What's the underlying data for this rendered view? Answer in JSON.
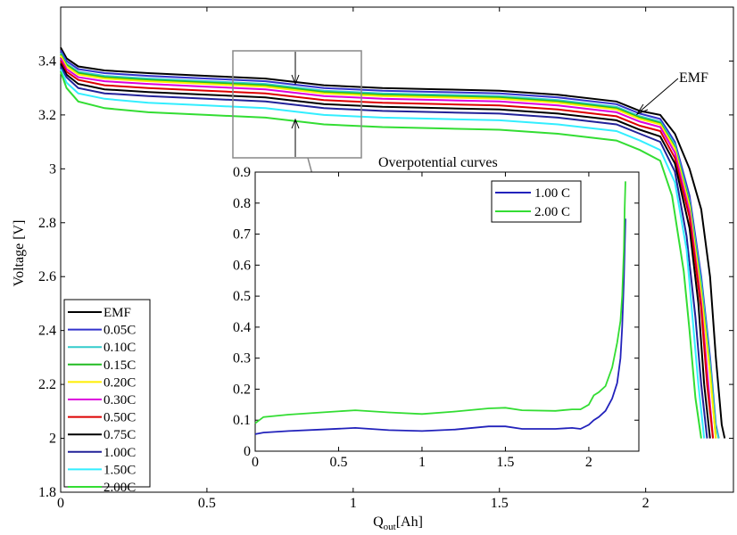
{
  "chart_data": [
    {
      "type": "line",
      "ylabel": "Voltage [V]",
      "xlabel_main": "Q",
      "xlabel_sub": "out",
      "xlabel_unit": "[Ah]",
      "xlim": [
        0,
        2.3
      ],
      "ylim": [
        1.8,
        3.6
      ],
      "xticks": [
        0,
        0.5,
        1,
        1.5,
        2
      ],
      "xtick_labels": [
        "0",
        "0.5",
        "1",
        "1.5",
        "2"
      ],
      "yticks": [
        1.8,
        2,
        2.2,
        2.4,
        2.6,
        2.8,
        3,
        3.2,
        3.4
      ],
      "ytick_labels": [
        "1.8",
        "2",
        "2.2",
        "2.4",
        "2.6",
        "2.8",
        "3",
        "3.2",
        "3.4"
      ],
      "annotation": "EMF",
      "legend_position": "bottom-left",
      "series": [
        {
          "name": "EMF",
          "color": "#000000",
          "qmax": 2.27,
          "x": [
            0,
            0.02,
            0.06,
            0.15,
            0.3,
            0.5,
            0.7,
            0.9,
            1.1,
            1.3,
            1.5,
            1.7,
            1.9,
            1.98,
            2.05,
            2.1,
            2.15,
            2.19,
            2.22,
            2.24,
            2.26,
            2.27
          ],
          "y": [
            3.45,
            3.41,
            3.38,
            3.365,
            3.355,
            3.345,
            3.335,
            3.31,
            3.3,
            3.295,
            3.29,
            3.275,
            3.25,
            3.215,
            3.2,
            3.13,
            3.0,
            2.85,
            2.6,
            2.3,
            2.05,
            2.0
          ]
        },
        {
          "name": "0.05C",
          "color": "#3333cc",
          "qmax": 2.25,
          "x": [
            0,
            0.02,
            0.06,
            0.15,
            0.3,
            0.5,
            0.7,
            0.9,
            1.1,
            1.3,
            1.5,
            1.7,
            1.9,
            1.98,
            2.05,
            2.1,
            2.15,
            2.19,
            2.22,
            2.24,
            2.25
          ],
          "y": [
            3.44,
            3.4,
            3.37,
            3.355,
            3.345,
            3.335,
            3.325,
            3.3,
            3.29,
            3.285,
            3.28,
            3.265,
            3.24,
            3.205,
            3.185,
            3.1,
            2.9,
            2.6,
            2.3,
            2.05,
            2.0
          ]
        },
        {
          "name": "0.10C",
          "color": "#33cccc",
          "qmax": 2.25,
          "x": [
            0,
            0.02,
            0.06,
            0.15,
            0.3,
            0.5,
            0.7,
            0.9,
            1.1,
            1.3,
            1.5,
            1.7,
            1.9,
            1.98,
            2.05,
            2.1,
            2.15,
            2.19,
            2.22,
            2.24,
            2.25
          ],
          "y": [
            3.43,
            3.39,
            3.36,
            3.345,
            3.335,
            3.325,
            3.315,
            3.29,
            3.28,
            3.275,
            3.27,
            3.255,
            3.23,
            3.195,
            3.175,
            3.09,
            2.88,
            2.58,
            2.28,
            2.04,
            2.0
          ]
        },
        {
          "name": "0.15C",
          "color": "#22bb22",
          "qmax": 2.24,
          "x": [
            0,
            0.02,
            0.06,
            0.15,
            0.3,
            0.5,
            0.7,
            0.9,
            1.1,
            1.3,
            1.5,
            1.7,
            1.9,
            1.98,
            2.05,
            2.1,
            2.15,
            2.19,
            2.22,
            2.24
          ],
          "y": [
            3.425,
            3.385,
            3.355,
            3.34,
            3.33,
            3.32,
            3.31,
            3.285,
            3.275,
            3.27,
            3.265,
            3.25,
            3.225,
            3.19,
            3.17,
            3.08,
            2.87,
            2.55,
            2.25,
            2.0
          ]
        },
        {
          "name": "0.20C",
          "color": "#ffee00",
          "qmax": 2.24,
          "x": [
            0,
            0.02,
            0.06,
            0.15,
            0.3,
            0.5,
            0.7,
            0.9,
            1.1,
            1.3,
            1.5,
            1.7,
            1.9,
            1.98,
            2.05,
            2.1,
            2.15,
            2.19,
            2.22,
            2.24
          ],
          "y": [
            3.42,
            3.38,
            3.35,
            3.335,
            3.325,
            3.315,
            3.305,
            3.28,
            3.27,
            3.265,
            3.26,
            3.245,
            3.22,
            3.185,
            3.165,
            3.075,
            2.86,
            2.54,
            2.24,
            2.0
          ]
        },
        {
          "name": "0.30C",
          "color": "#dd00dd",
          "qmax": 2.23,
          "x": [
            0,
            0.02,
            0.06,
            0.15,
            0.3,
            0.5,
            0.7,
            0.9,
            1.1,
            1.3,
            1.5,
            1.7,
            1.9,
            1.98,
            2.05,
            2.1,
            2.15,
            2.19,
            2.21,
            2.23
          ],
          "y": [
            3.41,
            3.37,
            3.34,
            3.325,
            3.315,
            3.305,
            3.295,
            3.27,
            3.26,
            3.255,
            3.25,
            3.235,
            3.21,
            3.175,
            3.155,
            3.06,
            2.84,
            2.5,
            2.25,
            2.0
          ]
        },
        {
          "name": "0.50C",
          "color": "#dd0000",
          "qmax": 2.23,
          "x": [
            0,
            0.02,
            0.06,
            0.15,
            0.3,
            0.5,
            0.7,
            0.9,
            1.1,
            1.3,
            1.5,
            1.7,
            1.9,
            1.98,
            2.05,
            2.1,
            2.15,
            2.19,
            2.21,
            2.23
          ],
          "y": [
            3.4,
            3.36,
            3.33,
            3.31,
            3.3,
            3.29,
            3.28,
            3.255,
            3.245,
            3.24,
            3.235,
            3.22,
            3.195,
            3.16,
            3.14,
            3.04,
            2.82,
            2.48,
            2.2,
            2.0
          ]
        },
        {
          "name": "0.75C",
          "color": "#000000",
          "qmax": 2.22,
          "x": [
            0,
            0.02,
            0.06,
            0.15,
            0.3,
            0.5,
            0.7,
            0.9,
            1.1,
            1.3,
            1.5,
            1.7,
            1.9,
            1.98,
            2.05,
            2.1,
            2.15,
            2.18,
            2.2,
            2.22
          ],
          "y": [
            3.39,
            3.35,
            3.315,
            3.295,
            3.285,
            3.275,
            3.265,
            3.24,
            3.23,
            3.225,
            3.22,
            3.205,
            3.18,
            3.145,
            3.12,
            3.02,
            2.78,
            2.5,
            2.2,
            2.0
          ]
        },
        {
          "name": "1.00C",
          "color": "#222299",
          "qmax": 2.21,
          "x": [
            0,
            0.02,
            0.06,
            0.15,
            0.3,
            0.5,
            0.7,
            0.9,
            1.1,
            1.3,
            1.5,
            1.7,
            1.9,
            1.98,
            2.05,
            2.1,
            2.14,
            2.17,
            2.19,
            2.21
          ],
          "y": [
            3.38,
            3.34,
            3.3,
            3.28,
            3.27,
            3.26,
            3.25,
            3.225,
            3.215,
            3.21,
            3.205,
            3.19,
            3.165,
            3.13,
            3.1,
            2.99,
            2.75,
            2.45,
            2.2,
            2.0
          ]
        },
        {
          "name": "1.50C",
          "color": "#33eeff",
          "qmax": 2.2,
          "x": [
            0,
            0.02,
            0.06,
            0.15,
            0.3,
            0.5,
            0.7,
            0.9,
            1.1,
            1.3,
            1.5,
            1.7,
            1.9,
            1.98,
            2.05,
            2.1,
            2.14,
            2.16,
            2.18,
            2.2
          ],
          "y": [
            3.37,
            3.32,
            3.28,
            3.26,
            3.245,
            3.235,
            3.225,
            3.2,
            3.19,
            3.185,
            3.18,
            3.165,
            3.14,
            3.105,
            3.07,
            2.95,
            2.7,
            2.45,
            2.2,
            2.0
          ]
        },
        {
          "name": "2.00C",
          "color": "#33dd33",
          "qmax": 2.19,
          "x": [
            0,
            0.02,
            0.06,
            0.15,
            0.3,
            0.5,
            0.7,
            0.9,
            1.1,
            1.3,
            1.5,
            1.7,
            1.9,
            1.98,
            2.05,
            2.09,
            2.13,
            2.15,
            2.17,
            2.19
          ],
          "y": [
            3.36,
            3.3,
            3.25,
            3.225,
            3.21,
            3.2,
            3.19,
            3.165,
            3.155,
            3.15,
            3.145,
            3.13,
            3.105,
            3.07,
            3.03,
            2.9,
            2.62,
            2.4,
            2.15,
            2.0
          ]
        }
      ]
    },
    {
      "type": "line",
      "title": "Overpotential curves",
      "xlim": [
        0,
        2.3
      ],
      "ylim": [
        0,
        0.9
      ],
      "xticks": [
        0,
        0.5,
        1,
        1.5,
        2
      ],
      "xtick_labels": [
        "0",
        "0.5",
        "1",
        "1.5",
        "2"
      ],
      "yticks": [
        0,
        0.1,
        0.2,
        0.3,
        0.4,
        0.5,
        0.6,
        0.7,
        0.8,
        0.9
      ],
      "ytick_labels": [
        "0",
        "0.1",
        "0.2",
        "0.3",
        "0.4",
        "0.5",
        "0.6",
        "0.7",
        "0.8",
        "0.9"
      ],
      "legend_position": "top-right",
      "series": [
        {
          "name": "1.00 C",
          "color": "#2222bb",
          "x": [
            0,
            0.05,
            0.2,
            0.4,
            0.6,
            0.8,
            1.0,
            1.2,
            1.4,
            1.5,
            1.6,
            1.8,
            1.9,
            1.95,
            2.0,
            2.03,
            2.06,
            2.1,
            2.14,
            2.17,
            2.19,
            2.2,
            2.21,
            2.215,
            2.22
          ],
          "y": [
            0.055,
            0.06,
            0.065,
            0.07,
            0.075,
            0.068,
            0.065,
            0.07,
            0.08,
            0.08,
            0.072,
            0.072,
            0.075,
            0.072,
            0.085,
            0.1,
            0.11,
            0.13,
            0.17,
            0.22,
            0.3,
            0.4,
            0.55,
            0.65,
            0.75
          ]
        },
        {
          "name": "2.00 C",
          "color": "#33dd33",
          "x": [
            0,
            0.05,
            0.2,
            0.4,
            0.6,
            0.8,
            1.0,
            1.2,
            1.4,
            1.5,
            1.6,
            1.8,
            1.9,
            1.95,
            2.0,
            2.03,
            2.06,
            2.1,
            2.14,
            2.17,
            2.19,
            2.2,
            2.21,
            2.215,
            2.22
          ],
          "y": [
            0.09,
            0.11,
            0.118,
            0.125,
            0.132,
            0.125,
            0.12,
            0.128,
            0.138,
            0.14,
            0.132,
            0.13,
            0.135,
            0.135,
            0.15,
            0.18,
            0.19,
            0.21,
            0.27,
            0.35,
            0.42,
            0.5,
            0.65,
            0.78,
            0.87
          ]
        }
      ]
    }
  ]
}
